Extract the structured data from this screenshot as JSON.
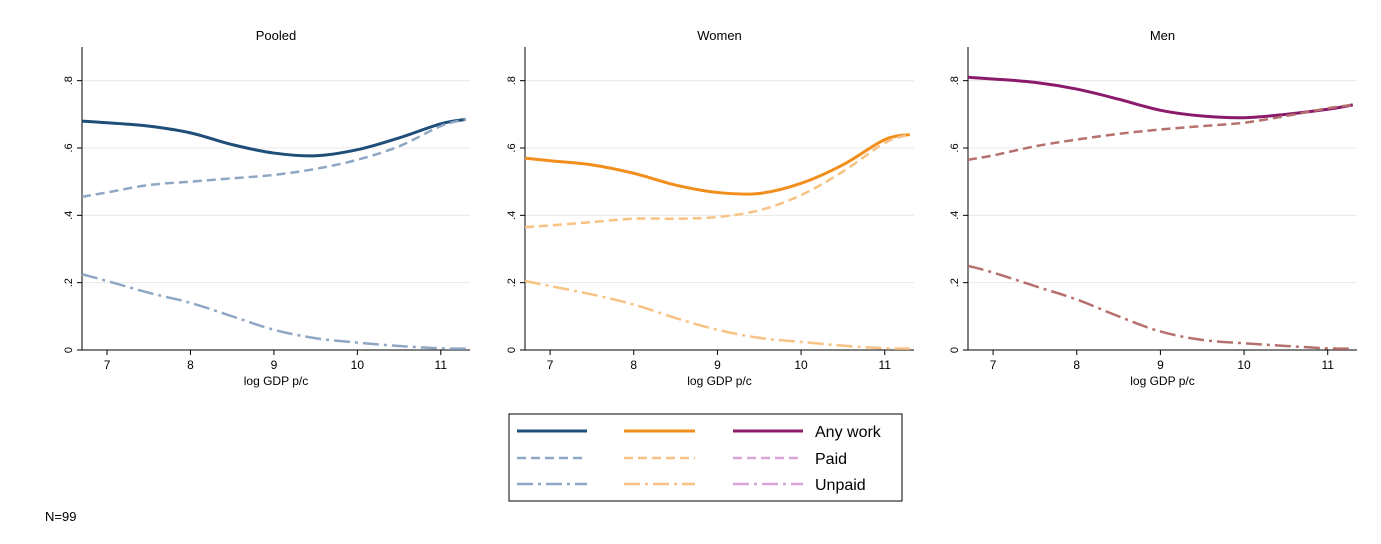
{
  "note": "N=99",
  "legend": {
    "entries": [
      "Any work",
      "Paid",
      "Unpaid"
    ]
  },
  "colors": {
    "pooled": {
      "any": "#1f4e79",
      "paid": "#8fa7c4",
      "unpaid": "#8fa7c4"
    },
    "women": {
      "any": "#f28e1c",
      "paid": "#f7c283",
      "unpaid": "#f7c283"
    },
    "men": {
      "any": "#8b1a6b",
      "paid": "#b6716f",
      "unpaid": "#b6716f",
      "legend_paid": "#d9a4d6",
      "legend_unpaid": "#d9a4d6"
    }
  },
  "chart_data": [
    {
      "type": "line",
      "title": "Pooled",
      "xlabel": "log GDP p/c",
      "ylabel": "",
      "xlim": [
        6.7,
        11.35
      ],
      "ylim": [
        0,
        0.9
      ],
      "xticks": [
        7,
        8,
        9,
        10,
        11
      ],
      "yticks": [
        0,
        0.2,
        0.4,
        0.6,
        0.8
      ],
      "yticklabels": [
        "0",
        ".2",
        ".4",
        ".6",
        ".8"
      ],
      "grid": true,
      "x": [
        6.7,
        7.0,
        7.5,
        8.0,
        8.5,
        9.0,
        9.5,
        10.0,
        10.5,
        11.0,
        11.3
      ],
      "series": [
        {
          "name": "Any work",
          "style": "solid",
          "values": [
            0.68,
            0.675,
            0.665,
            0.645,
            0.61,
            0.585,
            0.577,
            0.595,
            0.63,
            0.672,
            0.685
          ]
        },
        {
          "name": "Paid",
          "style": "dash",
          "values": [
            0.455,
            0.468,
            0.49,
            0.5,
            0.51,
            0.52,
            0.538,
            0.565,
            0.605,
            0.665,
            0.685
          ]
        },
        {
          "name": "Unpaid",
          "style": "longdash-dot",
          "values": [
            0.225,
            0.205,
            0.17,
            0.14,
            0.1,
            0.06,
            0.035,
            0.022,
            0.012,
            0.005,
            0.004
          ]
        }
      ]
    },
    {
      "type": "line",
      "title": "Women",
      "xlabel": "log GDP p/c",
      "ylabel": "",
      "xlim": [
        6.7,
        11.35
      ],
      "ylim": [
        0,
        0.9
      ],
      "xticks": [
        7,
        8,
        9,
        10,
        11
      ],
      "yticks": [
        0,
        0.2,
        0.4,
        0.6,
        0.8
      ],
      "yticklabels": [
        "0",
        ".2",
        ".4",
        ".6",
        ".8"
      ],
      "grid": true,
      "x": [
        6.7,
        7.0,
        7.5,
        8.0,
        8.5,
        9.0,
        9.5,
        10.0,
        10.5,
        11.0,
        11.3
      ],
      "series": [
        {
          "name": "Any work",
          "style": "solid",
          "values": [
            0.57,
            0.562,
            0.55,
            0.525,
            0.49,
            0.468,
            0.465,
            0.495,
            0.55,
            0.625,
            0.64
          ]
        },
        {
          "name": "Paid",
          "style": "dash",
          "values": [
            0.365,
            0.37,
            0.38,
            0.39,
            0.39,
            0.395,
            0.415,
            0.46,
            0.53,
            0.615,
            0.64
          ]
        },
        {
          "name": "Unpaid",
          "style": "longdash-dot",
          "values": [
            0.205,
            0.19,
            0.165,
            0.135,
            0.095,
            0.06,
            0.036,
            0.024,
            0.013,
            0.005,
            0.004
          ]
        }
      ]
    },
    {
      "type": "line",
      "title": "Men",
      "xlabel": "log GDP p/c",
      "ylabel": "",
      "xlim": [
        6.7,
        11.35
      ],
      "ylim": [
        0,
        0.9
      ],
      "xticks": [
        7,
        8,
        9,
        10,
        11
      ],
      "yticks": [
        0,
        0.2,
        0.4,
        0.6,
        0.8
      ],
      "yticklabels": [
        "0",
        ".2",
        ".4",
        ".6",
        ".8"
      ],
      "grid": true,
      "x": [
        6.7,
        7.0,
        7.5,
        8.0,
        8.5,
        9.0,
        9.5,
        10.0,
        10.5,
        11.0,
        11.3
      ],
      "series": [
        {
          "name": "Any work",
          "style": "solid",
          "values": [
            0.81,
            0.805,
            0.795,
            0.775,
            0.745,
            0.712,
            0.695,
            0.69,
            0.7,
            0.715,
            0.728
          ]
        },
        {
          "name": "Paid",
          "style": "dash",
          "values": [
            0.565,
            0.578,
            0.605,
            0.625,
            0.642,
            0.655,
            0.665,
            0.675,
            0.695,
            0.718,
            0.728
          ]
        },
        {
          "name": "Unpaid",
          "style": "longdash-dot",
          "values": [
            0.25,
            0.23,
            0.19,
            0.15,
            0.1,
            0.055,
            0.03,
            0.02,
            0.012,
            0.005,
            0.004
          ]
        }
      ]
    }
  ]
}
